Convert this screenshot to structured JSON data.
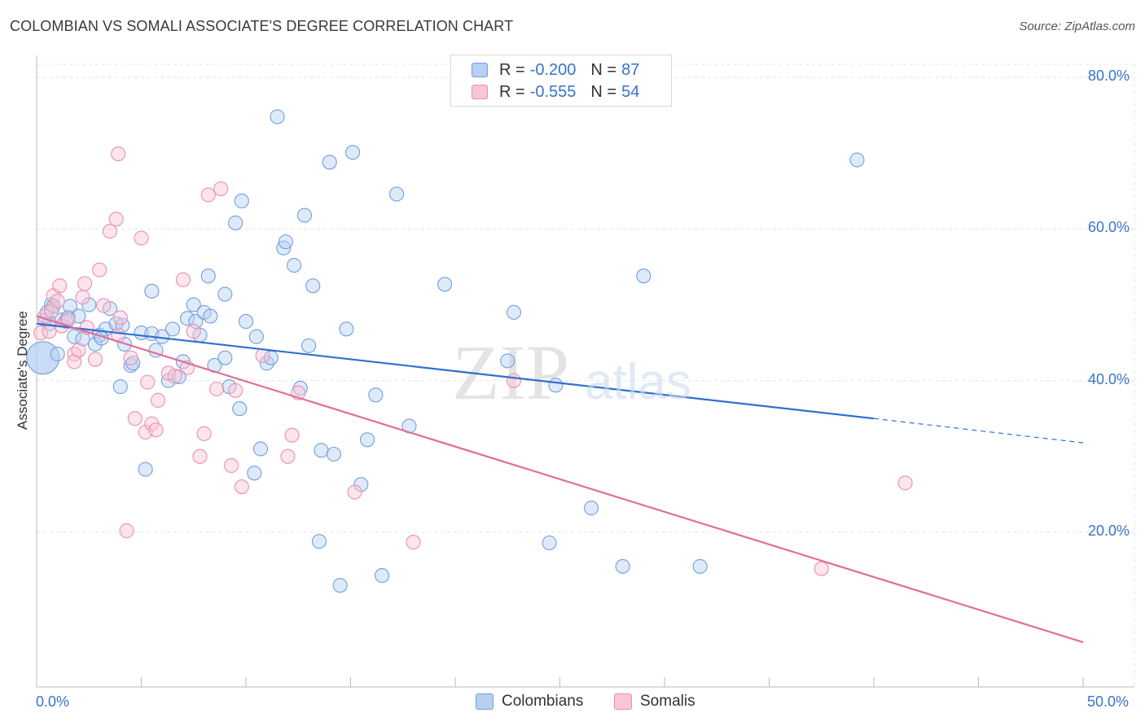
{
  "title": "COLOMBIAN VS SOMALI ASSOCIATE'S DEGREE CORRELATION CHART",
  "source": "Source: ZipAtlas.com",
  "legend": {
    "rows": [
      {
        "r_label": "R =",
        "r_value": "-0.200",
        "n_label": "N =",
        "n_value": "87"
      },
      {
        "r_label": "R =",
        "r_value": "-0.555",
        "n_label": "N =",
        "n_value": "54"
      }
    ]
  },
  "bottom_legend": [
    "Colombians",
    "Somalis"
  ],
  "watermark": "ZIPatlas",
  "chart_data": {
    "type": "scatter",
    "xlabel": "",
    "ylabel": "Associate's Degree",
    "xlim": [
      0,
      50
    ],
    "ylim": [
      0,
      82
    ],
    "x_tick_labels": [
      "0.0%",
      "50.0%"
    ],
    "y_tick_values": [
      20,
      40,
      60,
      80
    ],
    "y_tick_labels": [
      "20.0%",
      "40.0%",
      "60.0%",
      "80.0%"
    ],
    "grid": true,
    "colors": {
      "Colombians": "#6f9fe0",
      "Somalis": "#ec8fae",
      "blue_line": "#2f6fd0",
      "pink_line": "#e06e98"
    },
    "series": [
      {
        "name": "Colombians",
        "trend": {
          "x0": 0,
          "y0": 47.5,
          "x1": 40,
          "y1": 35.0,
          "dash_to_x": 50,
          "dash_to_y": 31.8
        },
        "points": [
          [
            0.3,
            43.0
          ],
          [
            0.4,
            48.0
          ],
          [
            0.5,
            49.0
          ],
          [
            0.6,
            47.5
          ],
          [
            0.7,
            50.0
          ],
          [
            0.8,
            49.8
          ],
          [
            1.0,
            43.5
          ],
          [
            1.2,
            48.0
          ],
          [
            1.4,
            47.8
          ],
          [
            1.6,
            49.8
          ],
          [
            1.8,
            45.8
          ],
          [
            2.0,
            48.5
          ],
          [
            2.2,
            45.5
          ],
          [
            2.5,
            50.0
          ],
          [
            2.8,
            44.8
          ],
          [
            3.0,
            46.0
          ],
          [
            3.3,
            46.8
          ],
          [
            3.5,
            49.5
          ],
          [
            3.8,
            47.5
          ],
          [
            4.0,
            39.2
          ],
          [
            4.2,
            44.8
          ],
          [
            4.5,
            42.0
          ],
          [
            4.6,
            42.3
          ],
          [
            5.0,
            46.3
          ],
          [
            5.2,
            28.3
          ],
          [
            5.5,
            46.2
          ],
          [
            5.5,
            51.8
          ],
          [
            5.7,
            44.0
          ],
          [
            6.0,
            45.8
          ],
          [
            6.3,
            40.0
          ],
          [
            6.5,
            46.8
          ],
          [
            6.8,
            40.5
          ],
          [
            7.0,
            42.5
          ],
          [
            7.2,
            48.2
          ],
          [
            7.5,
            50.0
          ],
          [
            7.6,
            47.8
          ],
          [
            7.8,
            46.0
          ],
          [
            8.0,
            49.0
          ],
          [
            8.2,
            53.8
          ],
          [
            8.3,
            48.5
          ],
          [
            8.5,
            42.0
          ],
          [
            9.0,
            51.4
          ],
          [
            9.0,
            43.0
          ],
          [
            9.2,
            39.2
          ],
          [
            9.5,
            60.8
          ],
          [
            9.7,
            36.3
          ],
          [
            9.8,
            63.7
          ],
          [
            10.0,
            47.8
          ],
          [
            10.4,
            27.8
          ],
          [
            10.5,
            45.8
          ],
          [
            10.7,
            31.0
          ],
          [
            11.0,
            42.3
          ],
          [
            11.2,
            43.0
          ],
          [
            11.5,
            74.8
          ],
          [
            11.8,
            57.5
          ],
          [
            11.9,
            58.3
          ],
          [
            12.3,
            55.2
          ],
          [
            12.6,
            39.0
          ],
          [
            12.8,
            61.8
          ],
          [
            13.0,
            44.6
          ],
          [
            13.2,
            52.5
          ],
          [
            13.5,
            18.8
          ],
          [
            13.6,
            30.8
          ],
          [
            14.0,
            68.8
          ],
          [
            14.2,
            30.3
          ],
          [
            14.5,
            13.0
          ],
          [
            14.8,
            46.8
          ],
          [
            15.1,
            70.1
          ],
          [
            15.5,
            26.3
          ],
          [
            15.8,
            32.2
          ],
          [
            16.2,
            38.1
          ],
          [
            16.5,
            14.3
          ],
          [
            17.2,
            64.6
          ],
          [
            17.8,
            34.0
          ],
          [
            19.5,
            52.7
          ],
          [
            22.5,
            42.6
          ],
          [
            22.8,
            49.0
          ],
          [
            24.5,
            18.6
          ],
          [
            24.8,
            39.4
          ],
          [
            26.5,
            23.2
          ],
          [
            28.0,
            15.5
          ],
          [
            29.0,
            53.8
          ],
          [
            31.7,
            15.5
          ],
          [
            39.2,
            69.1
          ],
          [
            4.1,
            47.3
          ],
          [
            3.1,
            45.6
          ],
          [
            1.5,
            48.3
          ]
        ]
      },
      {
        "name": "Somalis",
        "trend": {
          "x0": 0,
          "y0": 48.5,
          "x1": 50,
          "y1": 5.5
        },
        "points": [
          [
            0.2,
            46.3
          ],
          [
            0.4,
            48.5
          ],
          [
            0.6,
            46.5
          ],
          [
            0.7,
            49.2
          ],
          [
            0.8,
            51.2
          ],
          [
            1.0,
            50.5
          ],
          [
            1.1,
            52.5
          ],
          [
            1.2,
            47.2
          ],
          [
            1.5,
            48.0
          ],
          [
            1.8,
            43.5
          ],
          [
            1.8,
            42.5
          ],
          [
            2.0,
            44.0
          ],
          [
            2.2,
            51.0
          ],
          [
            2.3,
            52.8
          ],
          [
            2.4,
            47.0
          ],
          [
            2.8,
            42.8
          ],
          [
            3.0,
            54.6
          ],
          [
            3.2,
            49.9
          ],
          [
            3.5,
            59.7
          ],
          [
            3.8,
            61.3
          ],
          [
            3.9,
            46.0
          ],
          [
            3.9,
            69.9
          ],
          [
            4.0,
            48.3
          ],
          [
            4.3,
            20.2
          ],
          [
            4.5,
            43.0
          ],
          [
            4.7,
            35.0
          ],
          [
            5.0,
            58.8
          ],
          [
            5.2,
            33.2
          ],
          [
            5.3,
            39.8
          ],
          [
            5.5,
            34.3
          ],
          [
            5.7,
            33.5
          ],
          [
            5.8,
            37.4
          ],
          [
            6.3,
            41.0
          ],
          [
            6.6,
            40.6
          ],
          [
            7.0,
            53.3
          ],
          [
            7.2,
            41.7
          ],
          [
            7.5,
            46.5
          ],
          [
            7.8,
            30.0
          ],
          [
            8.0,
            33.0
          ],
          [
            8.2,
            64.5
          ],
          [
            8.6,
            38.9
          ],
          [
            8.8,
            65.3
          ],
          [
            9.3,
            28.8
          ],
          [
            9.5,
            38.7
          ],
          [
            9.8,
            26.0
          ],
          [
            10.8,
            43.3
          ],
          [
            12.0,
            30.0
          ],
          [
            12.2,
            32.8
          ],
          [
            12.5,
            38.4
          ],
          [
            15.2,
            25.3
          ],
          [
            18.0,
            18.7
          ],
          [
            22.8,
            40.0
          ],
          [
            37.5,
            15.2
          ],
          [
            41.5,
            26.5
          ]
        ]
      }
    ]
  }
}
